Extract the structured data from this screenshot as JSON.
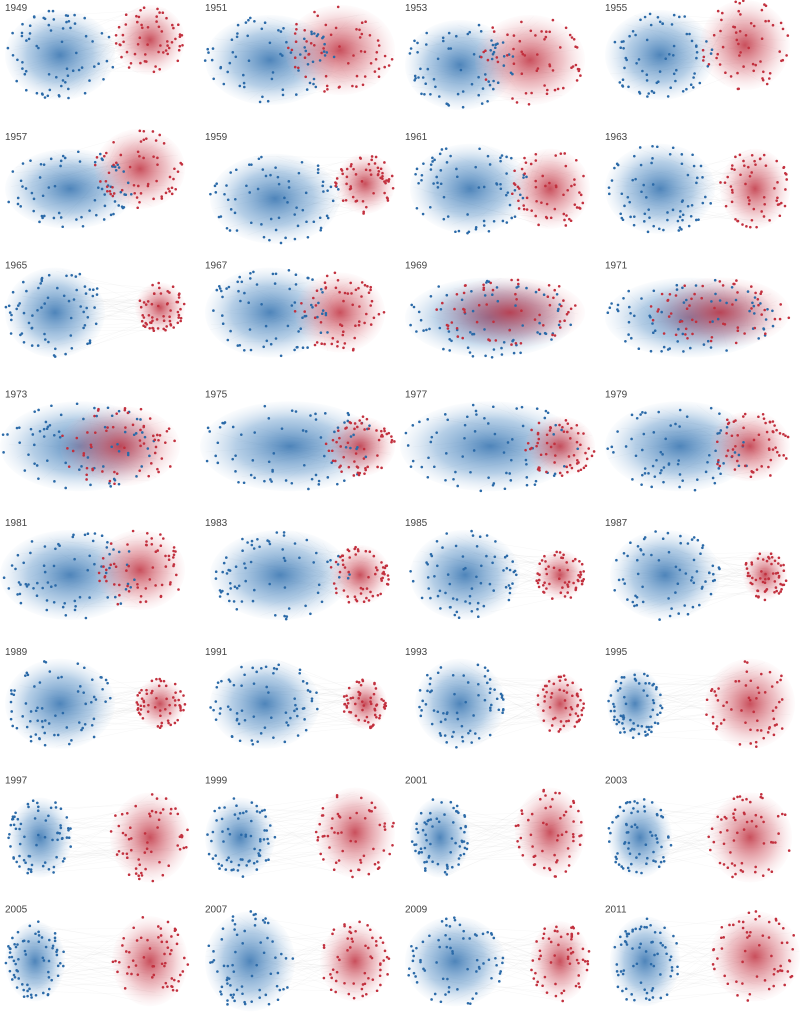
{
  "panels": [
    {
      "label": "1949"
    },
    {
      "label": "1951"
    },
    {
      "label": "1953"
    },
    {
      "label": "1955"
    },
    {
      "label": "1957"
    },
    {
      "label": "1959"
    },
    {
      "label": "1961"
    },
    {
      "label": "1963"
    },
    {
      "label": "1965"
    },
    {
      "label": "1967"
    },
    {
      "label": "1969"
    },
    {
      "label": "1971"
    },
    {
      "label": "1973"
    },
    {
      "label": "1975"
    },
    {
      "label": "1977"
    },
    {
      "label": "1979"
    },
    {
      "label": "1981"
    },
    {
      "label": "1983"
    },
    {
      "label": "1985"
    },
    {
      "label": "1987"
    },
    {
      "label": "1989"
    },
    {
      "label": "1991"
    },
    {
      "label": "1993"
    },
    {
      "label": "1995"
    },
    {
      "label": "1997"
    },
    {
      "label": "1999"
    },
    {
      "label": "2001"
    },
    {
      "label": "2003"
    },
    {
      "label": "2005"
    },
    {
      "label": "2007"
    },
    {
      "label": "2009"
    },
    {
      "label": "2011"
    }
  ]
}
